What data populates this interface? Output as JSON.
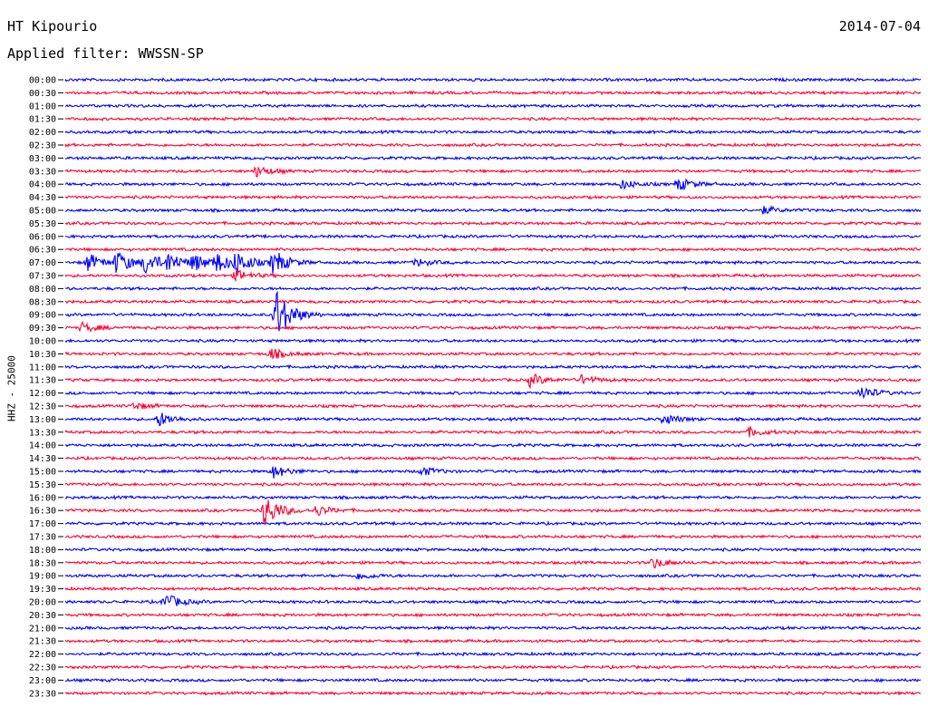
{
  "header": {
    "station": "HT Kipourio",
    "date": "2014-07-04",
    "filter": "Applied filter: WWSSN-SP"
  },
  "chart_data": {
    "type": "line",
    "title": "HT Kipourio",
    "subtitle": "Applied filter: WWSSN-SP",
    "date": "2014-07-04",
    "ylabel": "HHZ - 25000",
    "xlabel": "",
    "grid": false,
    "legend": "none",
    "colors": {
      "even_hour": "#0000ff",
      "half_hour": "#ff0033"
    },
    "rows": [
      "00:00",
      "00:30",
      "01:00",
      "01:30",
      "02:00",
      "02:30",
      "03:00",
      "03:30",
      "04:00",
      "04:30",
      "05:00",
      "05:30",
      "06:00",
      "06:30",
      "07:00",
      "07:30",
      "08:00",
      "08:30",
      "09:00",
      "09:30",
      "10:00",
      "10:30",
      "11:00",
      "11:30",
      "12:00",
      "12:30",
      "13:00",
      "13:30",
      "14:00",
      "14:30",
      "15:00",
      "15:30",
      "16:00",
      "16:30",
      "17:00",
      "17:30",
      "18:00",
      "18:30",
      "19:00",
      "19:30",
      "20:00",
      "20:30",
      "21:00",
      "21:30",
      "22:00",
      "22:30",
      "23:00",
      "23:30"
    ],
    "events": [
      {
        "row": "03:30",
        "minute": 6.7,
        "amplitude": 6
      },
      {
        "row": "04:00",
        "minute": 19.5,
        "amplitude": 5
      },
      {
        "row": "04:00",
        "minute": 21.5,
        "amplitude": 7
      },
      {
        "row": "05:00",
        "minute": 24.5,
        "amplitude": 4
      },
      {
        "row": "07:00",
        "minute": 0.8,
        "amplitude": 10
      },
      {
        "row": "07:00",
        "minute": 1.8,
        "amplitude": 12
      },
      {
        "row": "07:00",
        "minute": 2.8,
        "amplitude": 12
      },
      {
        "row": "07:00",
        "minute": 3.6,
        "amplitude": 10
      },
      {
        "row": "07:00",
        "minute": 4.5,
        "amplitude": 9
      },
      {
        "row": "07:00",
        "minute": 5.3,
        "amplitude": 10
      },
      {
        "row": "07:00",
        "minute": 6.0,
        "amplitude": 12
      },
      {
        "row": "07:00",
        "minute": 7.3,
        "amplitude": 14
      },
      {
        "row": "07:00",
        "minute": 12.3,
        "amplitude": 4
      },
      {
        "row": "07:30",
        "minute": 6.0,
        "amplitude": 6
      },
      {
        "row": "09:00",
        "minute": 7.4,
        "amplitude": 30
      },
      {
        "row": "09:30",
        "minute": 0.6,
        "amplitude": 5
      },
      {
        "row": "10:30",
        "minute": 7.2,
        "amplitude": 6
      },
      {
        "row": "11:30",
        "minute": 16.3,
        "amplitude": 7
      },
      {
        "row": "11:30",
        "minute": 18.1,
        "amplitude": 5
      },
      {
        "row": "12:00",
        "minute": 27.9,
        "amplitude": 8
      },
      {
        "row": "12:30",
        "minute": 2.4,
        "amplitude": 4
      },
      {
        "row": "13:00",
        "minute": 3.3,
        "amplitude": 8
      },
      {
        "row": "13:00",
        "minute": 21.0,
        "amplitude": 6
      },
      {
        "row": "13:30",
        "minute": 24.0,
        "amplitude": 5
      },
      {
        "row": "15:00",
        "minute": 7.3,
        "amplitude": 7
      },
      {
        "row": "15:00",
        "minute": 12.5,
        "amplitude": 5
      },
      {
        "row": "16:30",
        "minute": 7.0,
        "amplitude": 18
      },
      {
        "row": "16:30",
        "minute": 8.8,
        "amplitude": 6
      },
      {
        "row": "18:30",
        "minute": 20.6,
        "amplitude": 6
      },
      {
        "row": "19:00",
        "minute": 10.3,
        "amplitude": 4
      },
      {
        "row": "20:00",
        "minute": 3.5,
        "amplitude": 9
      }
    ]
  }
}
